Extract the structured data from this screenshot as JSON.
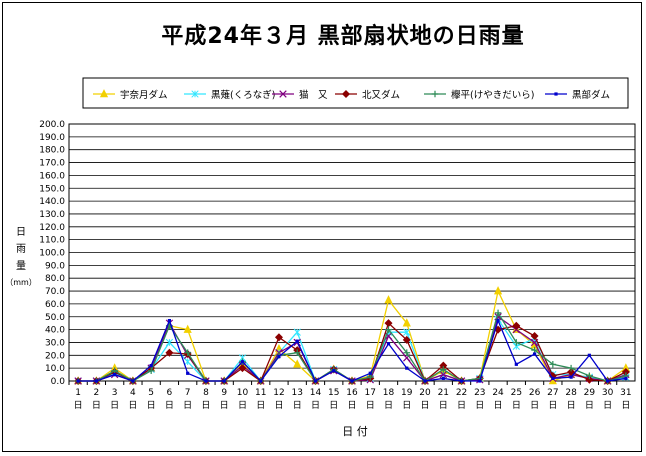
{
  "chart_data": {
    "type": "line",
    "title": "平成24年３月 黒部扇状地の日雨量",
    "ylabel": [
      "日",
      "雨",
      "量",
      "（mm）"
    ],
    "xlabel": "日 付",
    "ylim": [
      0,
      200
    ],
    "ytick_step": 10,
    "grid": true,
    "legend_position": "top",
    "categories": [
      "1",
      "2",
      "3",
      "4",
      "5",
      "6",
      "7",
      "8",
      "9",
      "10",
      "11",
      "12",
      "13",
      "14",
      "15",
      "16",
      "17",
      "18",
      "19",
      "20",
      "21",
      "22",
      "23",
      "24",
      "25",
      "26",
      "27",
      "28",
      "29",
      "30",
      "31"
    ],
    "category_suffix": "日",
    "series": [
      {
        "name": "宇奈月ダム",
        "color": "#f2d000",
        "marker": "triangle",
        "values": [
          0,
          0,
          10,
          0,
          10,
          43,
          40,
          0,
          0,
          13,
          0,
          25,
          13,
          0,
          9,
          0,
          4,
          63,
          45,
          0,
          8,
          0,
          2,
          70,
          40,
          28,
          0,
          5,
          3,
          0,
          10
        ]
      },
      {
        "name": "黒薙(くろなぎ)",
        "color": "#33e6ff",
        "marker": "cross",
        "values": [
          0,
          0,
          6,
          0,
          9,
          30,
          15,
          0,
          0,
          18,
          0,
          22,
          38,
          0,
          9,
          0,
          2,
          38,
          38,
          0,
          5,
          0,
          2,
          48,
          27,
          33,
          5,
          5,
          3,
          0,
          3
        ]
      },
      {
        "name": "猫　又",
        "color": "#800080",
        "marker": "x",
        "values": [
          0,
          0,
          5,
          0,
          10,
          45,
          20,
          0,
          0,
          12,
          0,
          22,
          30,
          0,
          8,
          0,
          1,
          35,
          18,
          0,
          5,
          0,
          1,
          50,
          40,
          30,
          2,
          5,
          2,
          0,
          5
        ]
      },
      {
        "name": "北又ダム",
        "color": "#8b0000",
        "marker": "diamond",
        "values": [
          0,
          0,
          7,
          0,
          10,
          22,
          21,
          0,
          0,
          10,
          0,
          34,
          24,
          0,
          9,
          0,
          2,
          45,
          32,
          0,
          12,
          0,
          2,
          40,
          43,
          35,
          4,
          7,
          1,
          0,
          7
        ]
      },
      {
        "name": "欅平(けやきだいら)",
        "color": "#2e8b57",
        "marker": "plus",
        "values": [
          0,
          0,
          8,
          0,
          8,
          43,
          22,
          0,
          0,
          15,
          0,
          20,
          22,
          0,
          9,
          0,
          3,
          40,
          22,
          0,
          9,
          0,
          2,
          53,
          30,
          24,
          13,
          10,
          4,
          0,
          4
        ]
      },
      {
        "name": "黒部ダム",
        "color": "#0000cc",
        "marker": "dot",
        "values": [
          0,
          0,
          5,
          0,
          12,
          47,
          6,
          0,
          0,
          15,
          0,
          19,
          31,
          0,
          8,
          0,
          6,
          29,
          10,
          0,
          2,
          0,
          0,
          47,
          13,
          21,
          2,
          3,
          20,
          0,
          2
        ]
      }
    ]
  }
}
